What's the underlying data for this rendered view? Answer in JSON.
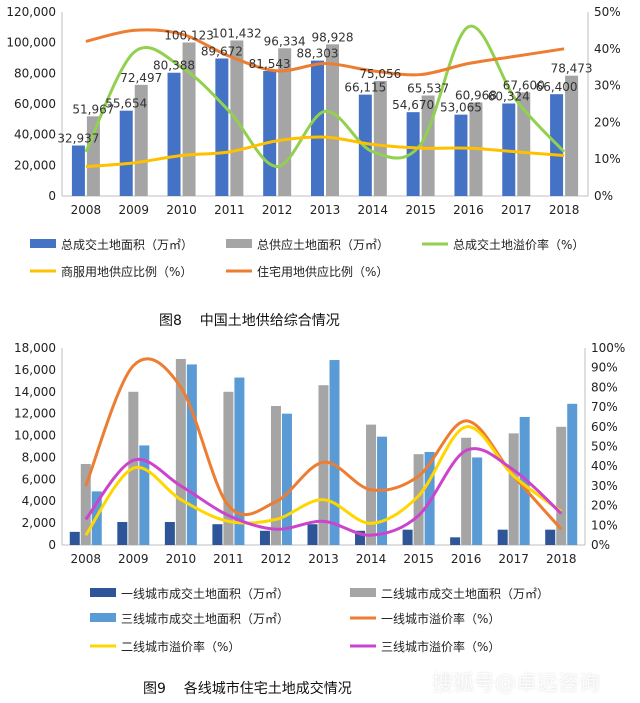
{
  "captions": {
    "fig8": "图8    中国土地供给综合情况",
    "fig9": "图9    各线城市住宅土地成交情况"
  },
  "watermark": "搜狐号@卓远咨询",
  "chart_data": [
    {
      "type": "bar",
      "categories": [
        "2008",
        "2009",
        "2010",
        "2011",
        "2012",
        "2013",
        "2014",
        "2015",
        "2016",
        "2017",
        "2018"
      ],
      "ylim": [
        0,
        120000
      ],
      "y2lim": [
        0,
        50
      ],
      "y_ticks": [
        "0",
        "20,000",
        "40,000",
        "60,000",
        "80,000",
        "100,000",
        "120,000"
      ],
      "y2_ticks": [
        "0%",
        "10%",
        "20%",
        "30%",
        "40%",
        "50%"
      ],
      "grid": false,
      "legend_position": "bottom",
      "series": [
        {
          "name": "总成交土地面积（万㎡）",
          "kind": "bar",
          "axis": "left",
          "color": "#4472C4",
          "values": [
            32937,
            55654,
            80388,
            89672,
            81543,
            88303,
            66115,
            54670,
            53065,
            60324,
            66400
          ],
          "labels": [
            "32,937",
            "55,654",
            "80,388",
            "89,672",
            "81,543",
            "88,303",
            "66,115",
            "54,670",
            "53,065",
            "60,324",
            "66,400"
          ]
        },
        {
          "name": "总供应土地面积（万㎡）",
          "kind": "bar",
          "axis": "left",
          "color": "#A5A5A5",
          "values": [
            51967,
            72497,
            100123,
            101432,
            96334,
            98928,
            75056,
            65537,
            60968,
            67600,
            78473
          ],
          "labels": [
            "51,967",
            "72,497",
            "100,123",
            "101,432",
            "96,334",
            "98,928",
            "75,056",
            "65,537",
            "60,968",
            "67,600",
            "78,473"
          ]
        },
        {
          "name": "总成交土地溢价率（%）",
          "kind": "line",
          "axis": "right",
          "color": "#92D050",
          "values": [
            12,
            39,
            35,
            23,
            8,
            23,
            12,
            14,
            46,
            26,
            12
          ]
        },
        {
          "name": "商服用地供应比例（%）",
          "kind": "line",
          "axis": "right",
          "color": "#FFC000",
          "values": [
            8,
            9,
            11,
            12,
            15,
            16,
            14,
            13,
            13,
            12,
            11
          ]
        },
        {
          "name": "住宅用地供应比例（%）",
          "kind": "line",
          "axis": "right",
          "color": "#ED7D31",
          "values": [
            42,
            45,
            44,
            38,
            34,
            36,
            34,
            33,
            36,
            38,
            40
          ]
        }
      ]
    },
    {
      "type": "bar",
      "categories": [
        "2008",
        "2009",
        "2010",
        "2011",
        "2012",
        "2013",
        "2014",
        "2015",
        "2016",
        "2017",
        "2018"
      ],
      "ylim": [
        0,
        18000
      ],
      "y2lim": [
        0,
        100
      ],
      "y_ticks": [
        "0",
        "2,000",
        "4,000",
        "6,000",
        "8,000",
        "10,000",
        "12,000",
        "14,000",
        "16,000",
        "18,000"
      ],
      "y2_ticks": [
        "0%",
        "10%",
        "20%",
        "30%",
        "40%",
        "50%",
        "60%",
        "70%",
        "80%",
        "90%",
        "100%"
      ],
      "grid": false,
      "legend_position": "bottom",
      "series": [
        {
          "name": "一线城市成交土地面积（万㎡）",
          "kind": "bar",
          "axis": "left",
          "color": "#2E5597",
          "values": [
            1200,
            2100,
            2100,
            1900,
            1300,
            1900,
            1300,
            1400,
            700,
            1400,
            1400
          ]
        },
        {
          "name": "二线城市成交土地面积（万㎡）",
          "kind": "bar",
          "axis": "left",
          "color": "#A5A5A5",
          "values": [
            7400,
            14000,
            17000,
            14000,
            12700,
            14600,
            11000,
            8300,
            9800,
            10200,
            10800
          ]
        },
        {
          "name": "三线城市成交土地面积（万㎡）",
          "kind": "bar",
          "axis": "left",
          "color": "#5B9BD5",
          "values": [
            4900,
            9100,
            16500,
            15300,
            12000,
            16900,
            9900,
            8500,
            8000,
            11700,
            12900
          ]
        },
        {
          "name": "一线城市溢价率（%）",
          "kind": "line",
          "axis": "right",
          "color": "#ED7D31",
          "values": [
            30,
            91,
            80,
            20,
            22,
            42,
            28,
            35,
            63,
            35,
            8
          ]
        },
        {
          "name": "二线城市溢价率（%）",
          "kind": "line",
          "axis": "right",
          "color": "#FFD700",
          "values": [
            5,
            39,
            23,
            12,
            13,
            23,
            11,
            25,
            60,
            35,
            17
          ]
        },
        {
          "name": "三线城市溢价率（%）",
          "kind": "line",
          "axis": "right",
          "color": "#CC44CC",
          "values": [
            13,
            43,
            30,
            15,
            8,
            12,
            5,
            15,
            48,
            38,
            16
          ]
        }
      ]
    }
  ]
}
